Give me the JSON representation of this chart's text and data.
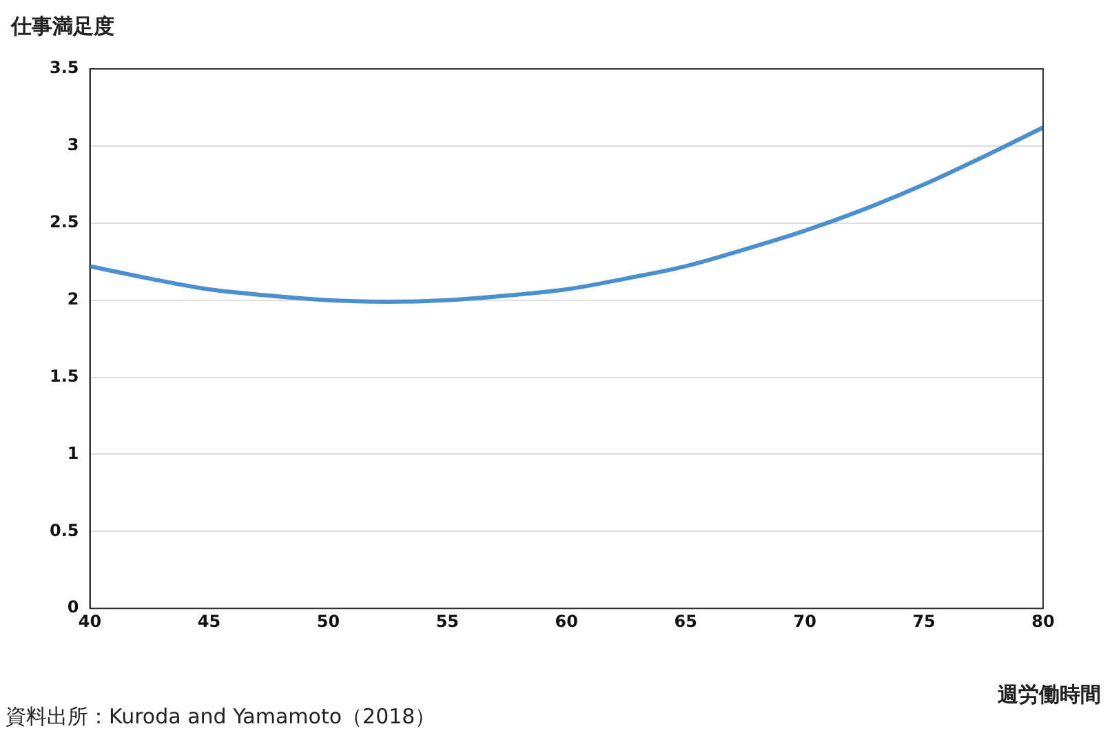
{
  "chart_data": {
    "type": "line",
    "ylabel": "仕事満足度",
    "xlabel": "週労働時間",
    "annotations": [
      "資料出所：Kuroda and Yamamoto（2018）"
    ],
    "x": [
      40,
      42.5,
      45,
      47.5,
      50,
      52.5,
      55,
      57.5,
      60,
      62.5,
      65,
      67.5,
      70,
      72.5,
      75,
      77.5,
      80
    ],
    "series": [
      {
        "color": "#4a90d0",
        "values": [
          2.22,
          2.14,
          2.07,
          2.03,
          2.0,
          1.99,
          2.0,
          2.03,
          2.07,
          2.14,
          2.22,
          2.33,
          2.45,
          2.59,
          2.75,
          2.93,
          3.12
        ]
      }
    ],
    "xlim": [
      40,
      80
    ],
    "xticks": [
      40,
      45,
      50,
      55,
      60,
      65,
      70,
      75,
      80
    ],
    "ylim": [
      0,
      3.5
    ],
    "yticks": [
      0,
      0.5,
      1,
      1.5,
      2,
      2.5,
      3,
      3.5
    ],
    "grid": "y",
    "marker": "none",
    "line_style": "solid",
    "legend": false
  }
}
